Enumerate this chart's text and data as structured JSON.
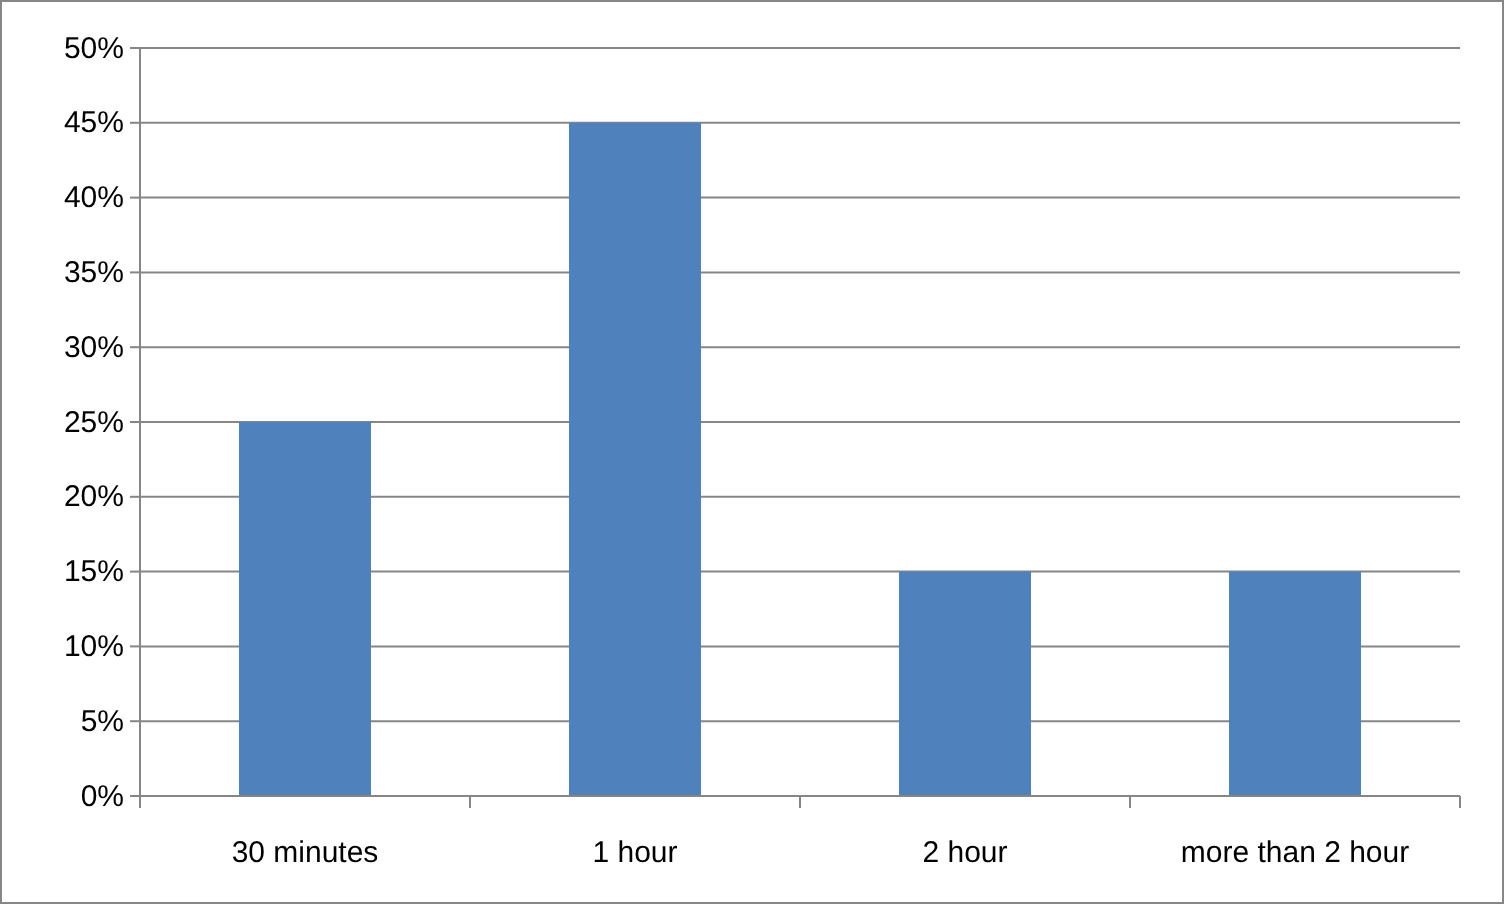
{
  "chart_data": {
    "type": "bar",
    "categories": [
      "30 minutes",
      "1 hour",
      "2 hour",
      "more than 2 hour"
    ],
    "values": [
      25,
      45,
      15,
      15
    ],
    "color": "#4f81bd",
    "ylim": [
      0,
      50
    ],
    "yticks": [
      {
        "value": 0,
        "label": "0%"
      },
      {
        "value": 5,
        "label": "5%"
      },
      {
        "value": 10,
        "label": "10%"
      },
      {
        "value": 15,
        "label": "15%"
      },
      {
        "value": 20,
        "label": "20%"
      },
      {
        "value": 25,
        "label": "25%"
      },
      {
        "value": 30,
        "label": "30%"
      },
      {
        "value": 35,
        "label": "35%"
      },
      {
        "value": 40,
        "label": "40%"
      },
      {
        "value": 45,
        "label": "45%"
      },
      {
        "value": 50,
        "label": "50%"
      }
    ],
    "grid": "y"
  }
}
